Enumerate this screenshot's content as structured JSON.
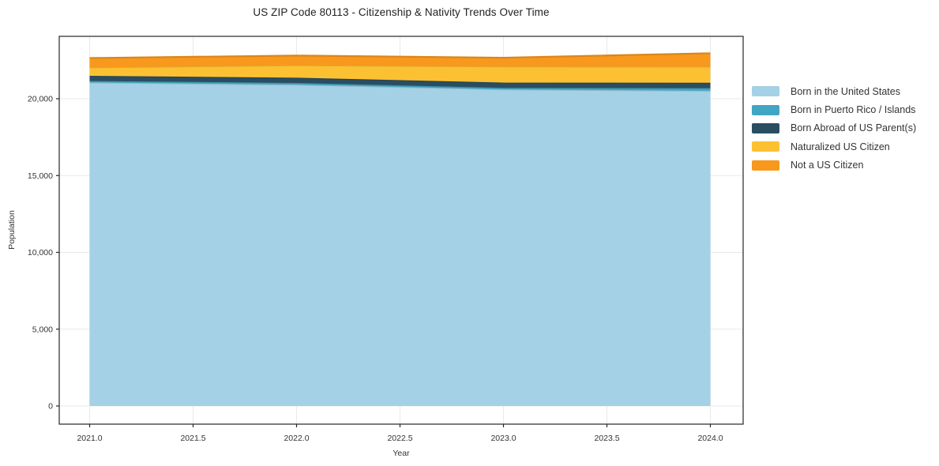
{
  "figure": {
    "title": "US ZIP Code 80113 - Citizenship & Nativity Trends Over Time",
    "xlabel": "Year",
    "ylabel": "Population"
  },
  "style": {
    "background": "#ffffff",
    "grid_color": "#e9e9e9",
    "spine_color": "#262626",
    "tick_color": "#262626",
    "tick_label_color": "#333333",
    "title_color": "#222222",
    "legend_text_color": "#333333"
  },
  "chart_data": {
    "type": "area",
    "stacked": true,
    "title": "US ZIP Code 80113 - Citizenship & Nativity Trends Over Time",
    "xlabel": "Year",
    "ylabel": "Population",
    "grid": true,
    "legend_position": "right-outside",
    "x": [
      2021,
      2022,
      2023,
      2024
    ],
    "series": [
      {
        "name": "Born in the United States",
        "color": "#A4D1E6",
        "values": [
          21060,
          20920,
          20610,
          20520
        ]
      },
      {
        "name": "Born in Puerto Rico / Islands",
        "color": "#41A6C3",
        "values": [
          100,
          110,
          100,
          170
        ]
      },
      {
        "name": "Born Abroad of US Parent(s)",
        "color": "#2B4D61",
        "values": [
          330,
          340,
          340,
          350
        ]
      },
      {
        "name": "Naturalized US Citizen",
        "color": "#FCC133",
        "values": [
          550,
          810,
          1050,
          1050
        ]
      },
      {
        "name": "Not a US Citizen",
        "color": "#F8981D",
        "values": [
          610,
          630,
          570,
          870
        ]
      }
    ],
    "totals": [
      22650,
      22810,
      22670,
      22960
    ],
    "x_ticks": {
      "labels": [
        "2021.0",
        "2021.5",
        "2022.0",
        "2022.5",
        "2023.0",
        "2023.5",
        "2024.0"
      ],
      "values": [
        2021,
        2021.5,
        2022,
        2022.5,
        2023,
        2023.5,
        2024
      ]
    },
    "y_ticks": {
      "labels": [
        "0",
        "5,000",
        "10,000",
        "15,000",
        "20,000"
      ],
      "values": [
        0,
        5000,
        10000,
        15000,
        20000
      ]
    },
    "xlim": [
      2020.85,
      2024.16
    ],
    "ylim": [
      -1180,
      24060
    ]
  }
}
